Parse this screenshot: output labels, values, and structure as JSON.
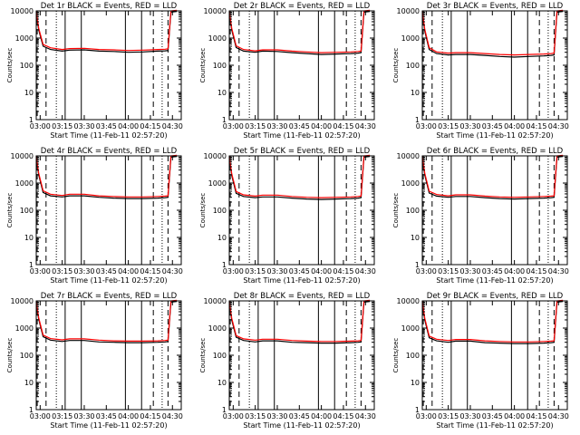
{
  "chart_data": [
    {
      "type": "line",
      "title": "Det 1r BLACK = Events, RED = LLD",
      "xlabel": "Start Time (11-Feb-11 02:57:20)",
      "ylabel": "Counts/sec",
      "yscale": "log",
      "ylim": [
        1,
        10000
      ],
      "xlim": [
        "02:57:20",
        "04:36:00"
      ],
      "x_ticks": [
        "03:00",
        "03:15",
        "03:30",
        "03:45",
        "04:00",
        "04:15",
        "04:30"
      ],
      "y_ticks": [
        "1",
        "10",
        "100",
        "1000",
        "10000"
      ],
      "series": [
        {
          "name": "Events",
          "color": "#000000",
          "x": [
            "02:57:20",
            "02:59:00",
            "03:02:00",
            "03:07:00",
            "03:15:00",
            "03:20:00",
            "03:30:00",
            "03:40:00",
            "03:50:00",
            "04:00:00",
            "04:10:00",
            "04:20:00",
            "04:25:00",
            "04:27:00",
            "04:29:00",
            "04:33:00"
          ],
          "y": [
            9000,
            2000,
            500,
            380,
            330,
            360,
            370,
            330,
            320,
            300,
            310,
            330,
            340,
            350,
            9000,
            9500
          ]
        },
        {
          "name": "LLD",
          "color": "#ff0000",
          "x": [
            "02:57:20",
            "02:59:00",
            "03:02:00",
            "03:07:00",
            "03:15:00",
            "03:20:00",
            "03:30:00",
            "03:40:00",
            "03:50:00",
            "04:00:00",
            "04:10:00",
            "04:20:00",
            "04:25:00",
            "04:27:00",
            "04:29:00",
            "04:33:00"
          ],
          "y": [
            10000,
            2300,
            580,
            440,
            380,
            410,
            420,
            380,
            370,
            350,
            360,
            380,
            390,
            400,
            10000,
            10500
          ]
        }
      ]
    },
    {
      "type": "line",
      "title": "Det 2r BLACK = Events, RED = LLD",
      "xlabel": "Start Time (11-Feb-11 02:57:20)",
      "ylabel": "Counts/sec",
      "yscale": "log",
      "ylim": [
        1,
        10000
      ],
      "xlim": [
        "02:57:20",
        "04:36:00"
      ],
      "x_ticks": [
        "03:00",
        "03:15",
        "03:30",
        "03:45",
        "04:00",
        "04:15",
        "04:30"
      ],
      "y_ticks": [
        "1",
        "10",
        "100",
        "1000",
        "10000"
      ],
      "series": [
        {
          "name": "Events",
          "color": "#000000",
          "x": [
            "02:57:20",
            "02:59:00",
            "03:02:00",
            "03:07:00",
            "03:15:00",
            "03:20:00",
            "03:30:00",
            "03:40:00",
            "03:50:00",
            "04:00:00",
            "04:10:00",
            "04:20:00",
            "04:25:00",
            "04:27:00",
            "04:29:00",
            "04:33:00"
          ],
          "y": [
            9000,
            2000,
            450,
            330,
            300,
            330,
            320,
            290,
            270,
            250,
            260,
            270,
            280,
            290,
            9000,
            9500
          ]
        },
        {
          "name": "LLD",
          "color": "#ff0000",
          "x": [
            "02:57:20",
            "02:59:00",
            "03:02:00",
            "03:07:00",
            "03:15:00",
            "03:20:00",
            "03:30:00",
            "03:40:00",
            "03:50:00",
            "04:00:00",
            "04:10:00",
            "04:20:00",
            "04:25:00",
            "04:27:00",
            "04:29:00",
            "04:33:00"
          ],
          "y": [
            10000,
            2300,
            520,
            380,
            340,
            370,
            370,
            330,
            310,
            290,
            300,
            310,
            320,
            330,
            10000,
            10500
          ]
        }
      ]
    },
    {
      "type": "line",
      "title": "Det 3r BLACK = Events, RED = LLD",
      "xlabel": "Start Time (11-Feb-11 02:57:20)",
      "ylabel": "Counts/sec",
      "yscale": "log",
      "ylim": [
        1,
        10000
      ],
      "xlim": [
        "02:57:20",
        "04:36:00"
      ],
      "x_ticks": [
        "03:00",
        "03:15",
        "03:30",
        "03:45",
        "04:00",
        "04:15",
        "04:30"
      ],
      "y_ticks": [
        "1",
        "10",
        "100",
        "1000",
        "10000"
      ],
      "series": [
        {
          "name": "Events",
          "color": "#000000",
          "x": [
            "02:57:20",
            "02:59:00",
            "03:02:00",
            "03:07:00",
            "03:15:00",
            "03:20:00",
            "03:30:00",
            "03:40:00",
            "03:50:00",
            "04:00:00",
            "04:10:00",
            "04:20:00",
            "04:25:00",
            "04:27:00",
            "04:29:00",
            "04:33:00"
          ],
          "y": [
            9000,
            1800,
            380,
            270,
            240,
            250,
            250,
            230,
            210,
            200,
            210,
            220,
            230,
            240,
            9000,
            9500
          ]
        },
        {
          "name": "LLD",
          "color": "#ff0000",
          "x": [
            "02:57:20",
            "02:59:00",
            "03:02:00",
            "03:07:00",
            "03:15:00",
            "03:20:00",
            "03:30:00",
            "03:40:00",
            "03:50:00",
            "04:00:00",
            "04:10:00",
            "04:20:00",
            "04:25:00",
            "04:27:00",
            "04:29:00",
            "04:33:00"
          ],
          "y": [
            10000,
            2100,
            440,
            310,
            280,
            290,
            290,
            270,
            250,
            240,
            250,
            260,
            270,
            280,
            10000,
            10500
          ]
        }
      ]
    },
    {
      "type": "line",
      "title": "Det 4r BLACK = Events, RED = LLD",
      "xlabel": "Start Time (11-Feb-11 02:57:20)",
      "ylabel": "Counts/sec",
      "yscale": "log",
      "ylim": [
        1,
        10000
      ],
      "xlim": [
        "02:57:20",
        "04:36:00"
      ],
      "x_ticks": [
        "03:00",
        "03:15",
        "03:30",
        "03:45",
        "04:00",
        "04:15",
        "04:30"
      ],
      "y_ticks": [
        "1",
        "10",
        "100",
        "1000",
        "10000"
      ],
      "series": [
        {
          "name": "Events",
          "color": "#000000",
          "x": [
            "02:57:20",
            "02:59:00",
            "03:02:00",
            "03:07:00",
            "03:15:00",
            "03:20:00",
            "03:30:00",
            "03:40:00",
            "03:50:00",
            "04:00:00",
            "04:10:00",
            "04:20:00",
            "04:25:00",
            "04:27:00",
            "04:29:00",
            "04:33:00"
          ],
          "y": [
            9000,
            2000,
            450,
            340,
            310,
            340,
            340,
            300,
            280,
            270,
            270,
            280,
            290,
            300,
            9000,
            9500
          ]
        },
        {
          "name": "LLD",
          "color": "#ff0000",
          "x": [
            "02:57:20",
            "02:59:00",
            "03:02:00",
            "03:07:00",
            "03:15:00",
            "03:20:00",
            "03:30:00",
            "03:40:00",
            "03:50:00",
            "04:00:00",
            "04:10:00",
            "04:20:00",
            "04:25:00",
            "04:27:00",
            "04:29:00",
            "04:33:00"
          ],
          "y": [
            10000,
            2300,
            520,
            390,
            350,
            390,
            390,
            340,
            320,
            310,
            310,
            320,
            330,
            340,
            10000,
            10500
          ]
        }
      ]
    },
    {
      "type": "line",
      "title": "Det 5r BLACK = Events, RED = LLD",
      "xlabel": "Start Time (11-Feb-11 02:57:20)",
      "ylabel": "Counts/sec",
      "yscale": "log",
      "ylim": [
        1,
        10000
      ],
      "xlim": [
        "02:57:20",
        "04:36:00"
      ],
      "x_ticks": [
        "03:00",
        "03:15",
        "03:30",
        "03:45",
        "04:00",
        "04:15",
        "04:30"
      ],
      "y_ticks": [
        "1",
        "10",
        "100",
        "1000",
        "10000"
      ],
      "series": [
        {
          "name": "Events",
          "color": "#000000",
          "x": [
            "02:57:20",
            "02:59:00",
            "03:02:00",
            "03:07:00",
            "03:15:00",
            "03:20:00",
            "03:30:00",
            "03:40:00",
            "03:50:00",
            "04:00:00",
            "04:10:00",
            "04:20:00",
            "04:25:00",
            "04:27:00",
            "04:29:00",
            "04:33:00"
          ],
          "y": [
            9000,
            1900,
            420,
            320,
            290,
            310,
            310,
            280,
            260,
            250,
            260,
            270,
            280,
            290,
            9000,
            9500
          ]
        },
        {
          "name": "LLD",
          "color": "#ff0000",
          "x": [
            "02:57:20",
            "02:59:00",
            "03:02:00",
            "03:07:00",
            "03:15:00",
            "03:20:00",
            "03:30:00",
            "03:40:00",
            "03:50:00",
            "04:00:00",
            "04:10:00",
            "04:20:00",
            "04:25:00",
            "04:27:00",
            "04:29:00",
            "04:33:00"
          ],
          "y": [
            10000,
            2200,
            490,
            370,
            330,
            360,
            360,
            320,
            300,
            290,
            300,
            310,
            320,
            330,
            10000,
            10500
          ]
        }
      ]
    },
    {
      "type": "line",
      "title": "Det 6r BLACK = Events, RED = LLD",
      "xlabel": "Start Time (11-Feb-11 02:57:20)",
      "ylabel": "Counts/sec",
      "yscale": "log",
      "ylim": [
        1,
        10000
      ],
      "xlim": [
        "02:57:20",
        "04:36:00"
      ],
      "x_ticks": [
        "03:00",
        "03:15",
        "03:30",
        "03:45",
        "04:00",
        "04:15",
        "04:30"
      ],
      "y_ticks": [
        "1",
        "10",
        "100",
        "1000",
        "10000"
      ],
      "series": [
        {
          "name": "Events",
          "color": "#000000",
          "x": [
            "02:57:20",
            "02:59:00",
            "03:02:00",
            "03:07:00",
            "03:15:00",
            "03:20:00",
            "03:30:00",
            "03:40:00",
            "03:50:00",
            "04:00:00",
            "04:10:00",
            "04:20:00",
            "04:25:00",
            "04:27:00",
            "04:29:00",
            "04:33:00"
          ],
          "y": [
            9000,
            2000,
            430,
            330,
            300,
            320,
            320,
            290,
            270,
            260,
            270,
            280,
            290,
            300,
            9000,
            9500
          ]
        },
        {
          "name": "LLD",
          "color": "#ff0000",
          "x": [
            "02:57:20",
            "02:59:00",
            "03:02:00",
            "03:07:00",
            "03:15:00",
            "03:20:00",
            "03:30:00",
            "03:40:00",
            "03:50:00",
            "04:00:00",
            "04:10:00",
            "04:20:00",
            "04:25:00",
            "04:27:00",
            "04:29:00",
            "04:33:00"
          ],
          "y": [
            10000,
            2300,
            500,
            380,
            340,
            370,
            370,
            330,
            310,
            300,
            310,
            320,
            330,
            340,
            10000,
            10500
          ]
        }
      ]
    },
    {
      "type": "line",
      "title": "Det 7r BLACK = Events, RED = LLD",
      "xlabel": "Start Time (11-Feb-11 02:57:20)",
      "ylabel": "Counts/sec",
      "yscale": "log",
      "ylim": [
        1,
        10000
      ],
      "xlim": [
        "02:57:20",
        "04:36:00"
      ],
      "x_ticks": [
        "03:00",
        "03:15",
        "03:30",
        "03:45",
        "04:00",
        "04:15",
        "04:30"
      ],
      "y_ticks": [
        "1",
        "10",
        "100",
        "1000",
        "10000"
      ],
      "series": [
        {
          "name": "Events",
          "color": "#000000",
          "x": [
            "02:57:20",
            "02:59:00",
            "03:02:00",
            "03:07:00",
            "03:15:00",
            "03:20:00",
            "03:30:00",
            "03:40:00",
            "03:50:00",
            "04:00:00",
            "04:10:00",
            "04:20:00",
            "04:25:00",
            "04:27:00",
            "04:29:00",
            "04:33:00"
          ],
          "y": [
            9000,
            2100,
            480,
            360,
            320,
            350,
            350,
            310,
            300,
            290,
            290,
            300,
            310,
            320,
            9000,
            9500
          ]
        },
        {
          "name": "LLD",
          "color": "#ff0000",
          "x": [
            "02:57:20",
            "02:59:00",
            "03:02:00",
            "03:07:00",
            "03:15:00",
            "03:20:00",
            "03:30:00",
            "03:40:00",
            "03:50:00",
            "04:00:00",
            "04:10:00",
            "04:20:00",
            "04:25:00",
            "04:27:00",
            "04:29:00",
            "04:33:00"
          ],
          "y": [
            10000,
            2400,
            550,
            410,
            370,
            400,
            400,
            360,
            340,
            330,
            330,
            340,
            350,
            360,
            10000,
            10500
          ]
        }
      ]
    },
    {
      "type": "line",
      "title": "Det 8r BLACK = Events, RED = LLD",
      "xlabel": "Start Time (11-Feb-11 02:57:20)",
      "ylabel": "Counts/sec",
      "yscale": "log",
      "ylim": [
        1,
        10000
      ],
      "xlim": [
        "02:57:20",
        "04:36:00"
      ],
      "x_ticks": [
        "03:00",
        "03:15",
        "03:30",
        "03:45",
        "04:00",
        "04:15",
        "04:30"
      ],
      "y_ticks": [
        "1",
        "10",
        "100",
        "1000",
        "10000"
      ],
      "series": [
        {
          "name": "Events",
          "color": "#000000",
          "x": [
            "02:57:20",
            "02:59:00",
            "03:02:00",
            "03:07:00",
            "03:15:00",
            "03:20:00",
            "03:30:00",
            "03:40:00",
            "03:50:00",
            "04:00:00",
            "04:10:00",
            "04:20:00",
            "04:25:00",
            "04:27:00",
            "04:29:00",
            "04:33:00"
          ],
          "y": [
            9000,
            2000,
            460,
            350,
            310,
            340,
            340,
            300,
            290,
            280,
            280,
            290,
            300,
            310,
            9000,
            9500
          ]
        },
        {
          "name": "LLD",
          "color": "#ff0000",
          "x": [
            "02:57:20",
            "02:59:00",
            "03:02:00",
            "03:07:00",
            "03:15:00",
            "03:20:00",
            "03:30:00",
            "03:40:00",
            "03:50:00",
            "04:00:00",
            "04:10:00",
            "04:20:00",
            "04:25:00",
            "04:27:00",
            "04:29:00",
            "04:33:00"
          ],
          "y": [
            10000,
            2300,
            530,
            400,
            360,
            390,
            390,
            350,
            330,
            320,
            320,
            330,
            340,
            350,
            10000,
            10500
          ]
        }
      ]
    },
    {
      "type": "line",
      "title": "Det 9r BLACK = Events, RED = LLD",
      "xlabel": "Start Time (11-Feb-11 02:57:20)",
      "ylabel": "Counts/sec",
      "yscale": "log",
      "ylim": [
        1,
        10000
      ],
      "xlim": [
        "02:57:20",
        "04:36:00"
      ],
      "x_ticks": [
        "03:00",
        "03:15",
        "03:30",
        "03:45",
        "04:00",
        "04:15",
        "04:30"
      ],
      "y_ticks": [
        "1",
        "10",
        "100",
        "1000",
        "10000"
      ],
      "series": [
        {
          "name": "Events",
          "color": "#000000",
          "x": [
            "02:57:20",
            "02:59:00",
            "03:02:00",
            "03:07:00",
            "03:15:00",
            "03:20:00",
            "03:30:00",
            "03:40:00",
            "03:50:00",
            "04:00:00",
            "04:10:00",
            "04:20:00",
            "04:25:00",
            "04:27:00",
            "04:29:00",
            "04:33:00"
          ],
          "y": [
            9000,
            2000,
            440,
            340,
            300,
            330,
            330,
            290,
            280,
            270,
            270,
            280,
            290,
            300,
            9000,
            9500
          ]
        },
        {
          "name": "LLD",
          "color": "#ff0000",
          "x": [
            "02:57:20",
            "02:59:00",
            "03:02:00",
            "03:07:00",
            "03:15:00",
            "03:20:00",
            "03:30:00",
            "03:40:00",
            "03:50:00",
            "04:00:00",
            "04:10:00",
            "04:20:00",
            "04:25:00",
            "04:27:00",
            "04:29:00",
            "04:33:00"
          ],
          "y": [
            10000,
            2300,
            510,
            390,
            350,
            380,
            380,
            340,
            320,
            310,
            310,
            320,
            330,
            340,
            10000,
            10500
          ]
        }
      ]
    }
  ],
  "markers": {
    "solid": [
      "03:17:00",
      "03:28:00",
      "03:58:00",
      "04:09:00"
    ],
    "dashed": [
      "02:58:00",
      "03:04:00",
      "04:17:00",
      "04:27:00"
    ],
    "dotted": [
      "03:11:00",
      "04:23:00"
    ]
  }
}
